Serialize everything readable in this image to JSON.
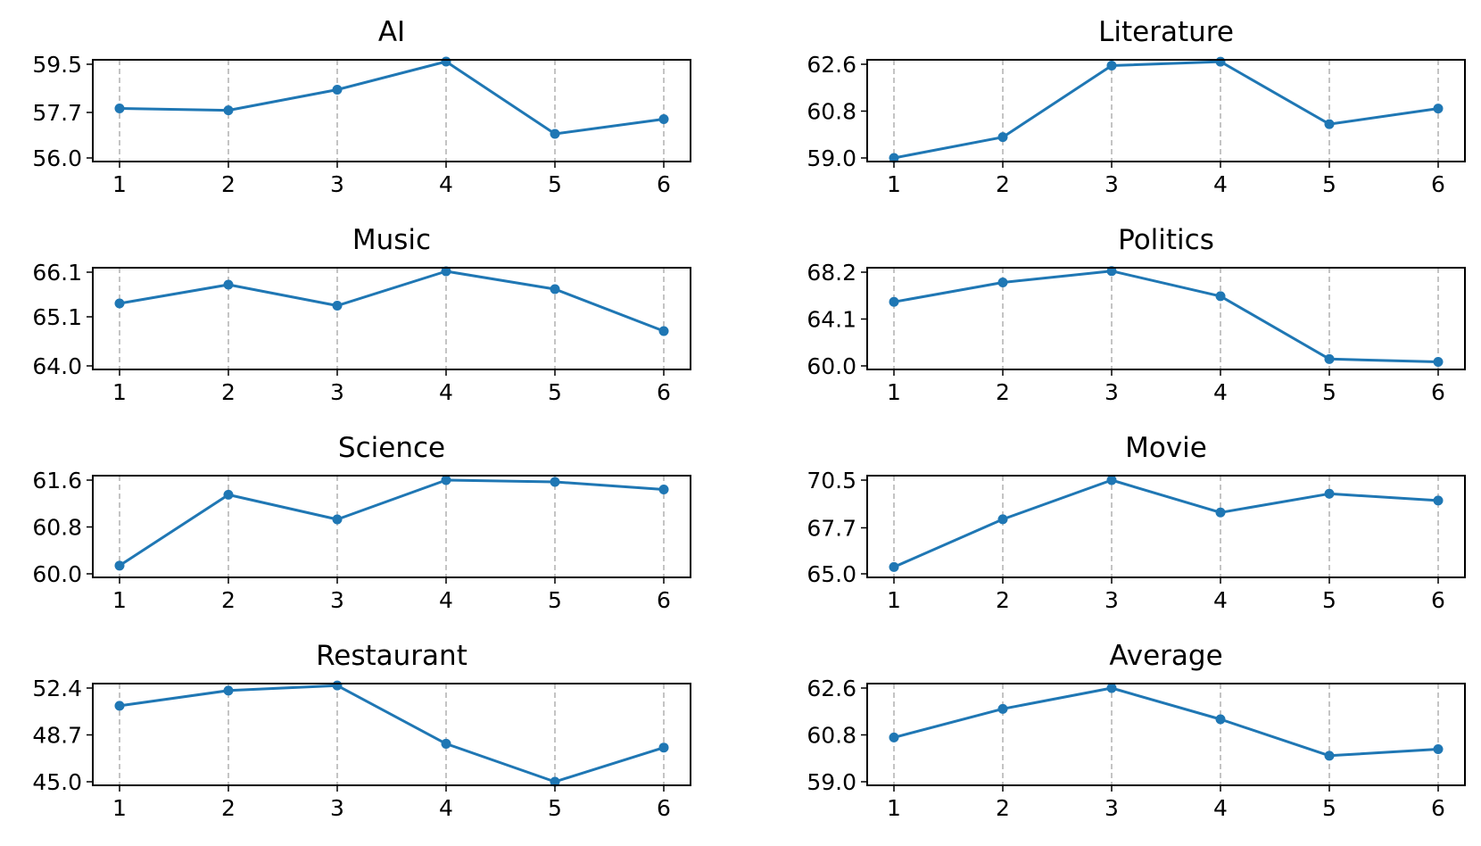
{
  "chart_data": [
    {
      "type": "line",
      "title": "AI",
      "x": [
        1,
        2,
        3,
        4,
        5,
        6
      ],
      "values": [
        57.85,
        57.78,
        58.55,
        59.6,
        56.9,
        57.45
      ],
      "ylim": [
        56.0,
        59.5
      ],
      "yticks": [
        "56.0",
        "57.7",
        "59.5"
      ],
      "xticks": [
        "1",
        "2",
        "3",
        "4",
        "5",
        "6"
      ],
      "xlabel": "",
      "ylabel": "",
      "grid": "x-dashed"
    },
    {
      "type": "line",
      "title": "Literature",
      "x": [
        1,
        2,
        3,
        4,
        5,
        6
      ],
      "values": [
        59.0,
        59.8,
        62.55,
        62.7,
        60.3,
        60.9
      ],
      "ylim": [
        59.0,
        62.6
      ],
      "yticks": [
        "59.0",
        "60.8",
        "62.6"
      ],
      "xticks": [
        "1",
        "2",
        "3",
        "4",
        "5",
        "6"
      ],
      "xlabel": "",
      "ylabel": "",
      "grid": "x-dashed"
    },
    {
      "type": "line",
      "title": "Music",
      "x": [
        1,
        2,
        3,
        4,
        5,
        6
      ],
      "values": [
        65.4,
        65.82,
        65.35,
        66.12,
        65.72,
        64.78
      ],
      "ylim": [
        64.0,
        66.1
      ],
      "yticks": [
        "64.0",
        "65.1",
        "66.1"
      ],
      "xticks": [
        "1",
        "2",
        "3",
        "4",
        "5",
        "6"
      ],
      "xlabel": "",
      "ylabel": "",
      "grid": "x-dashed"
    },
    {
      "type": "line",
      "title": "Politics",
      "x": [
        1,
        2,
        3,
        4,
        5,
        6
      ],
      "values": [
        65.6,
        67.3,
        68.3,
        66.1,
        60.6,
        60.35
      ],
      "ylim": [
        60.0,
        68.2
      ],
      "yticks": [
        "60.0",
        "64.1",
        "68.2"
      ],
      "xticks": [
        "1",
        "2",
        "3",
        "4",
        "5",
        "6"
      ],
      "xlabel": "",
      "ylabel": "",
      "grid": "x-dashed"
    },
    {
      "type": "line",
      "title": "Science",
      "x": [
        1,
        2,
        3,
        4,
        5,
        6
      ],
      "values": [
        60.14,
        61.35,
        60.93,
        61.6,
        61.57,
        61.44
      ],
      "ylim": [
        60.0,
        61.6
      ],
      "yticks": [
        "60.0",
        "60.8",
        "61.6"
      ],
      "xticks": [
        "1",
        "2",
        "3",
        "4",
        "5",
        "6"
      ],
      "xlabel": "",
      "ylabel": "",
      "grid": "x-dashed"
    },
    {
      "type": "line",
      "title": "Movie",
      "x": [
        1,
        2,
        3,
        4,
        5,
        6
      ],
      "values": [
        65.4,
        68.2,
        70.5,
        68.6,
        69.7,
        69.3
      ],
      "ylim": [
        65.0,
        70.5
      ],
      "yticks": [
        "65.0",
        "67.7",
        "70.5"
      ],
      "xticks": [
        "1",
        "2",
        "3",
        "4",
        "5",
        "6"
      ],
      "xlabel": "",
      "ylabel": "",
      "grid": "x-dashed"
    },
    {
      "type": "line",
      "title": "Restaurant",
      "x": [
        1,
        2,
        3,
        4,
        5,
        6
      ],
      "values": [
        51.0,
        52.2,
        52.6,
        48.0,
        45.0,
        47.7
      ],
      "ylim": [
        45.0,
        52.4
      ],
      "yticks": [
        "45.0",
        "48.7",
        "52.4"
      ],
      "xticks": [
        "1",
        "2",
        "3",
        "4",
        "5",
        "6"
      ],
      "xlabel": "",
      "ylabel": "",
      "grid": "x-dashed"
    },
    {
      "type": "line",
      "title": "Average",
      "x": [
        1,
        2,
        3,
        4,
        5,
        6
      ],
      "values": [
        60.7,
        61.8,
        62.6,
        61.4,
        60.0,
        60.25
      ],
      "ylim": [
        59.0,
        62.6
      ],
      "yticks": [
        "59.0",
        "60.8",
        "62.6"
      ],
      "xticks": [
        "1",
        "2",
        "3",
        "4",
        "5",
        "6"
      ],
      "xlabel": "",
      "ylabel": "",
      "grid": "x-dashed"
    }
  ],
  "style": {
    "line_color": "#1f77b4",
    "grid_color": "#b0b0b0",
    "axis_color": "#000000"
  }
}
